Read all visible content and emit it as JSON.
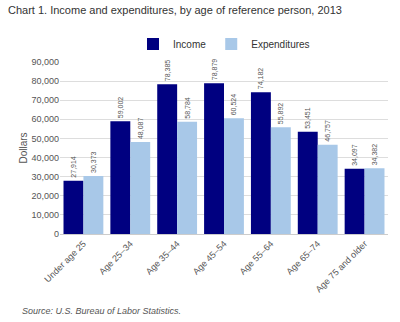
{
  "chart_data": {
    "type": "bar",
    "title": "Chart 1. Income and expenditures, by age of reference person, 2013",
    "ylabel": "Dollars",
    "source": "Source: U.S. Bureau of Labor Statistics.",
    "categories": [
      "Under age 25",
      "Age 25–34",
      "Age 35–44",
      "Age 45–54",
      "Age 55–64",
      "Age 65–74",
      "Age 75 and older"
    ],
    "series": [
      {
        "name": "Income",
        "color": "#000080",
        "values": [
          27914,
          59002,
          78385,
          78879,
          74182,
          53451,
          34097
        ],
        "value_labels": [
          "27,914",
          "59,002",
          "78,385",
          "78,879",
          "74,182",
          "53,451",
          "34,097"
        ]
      },
      {
        "name": "Expenditures",
        "color": "#A8C8E8",
        "values": [
          30373,
          48087,
          58784,
          60524,
          55892,
          46757,
          34382
        ],
        "value_labels": [
          "30,373",
          "48,087",
          "58,784",
          "60,524",
          "55,892",
          "46,757",
          "34,382"
        ]
      }
    ],
    "ylim": [
      0,
      90000
    ],
    "yticks": [
      0,
      {
        "value": 10000,
        "label": "10,000"
      },
      {
        "value": 20000,
        "label": "20,000"
      },
      {
        "value": 30000,
        "label": "30,000"
      },
      {
        "value": 40000,
        "label": "40,000"
      },
      {
        "value": 50000,
        "label": "50,000"
      },
      {
        "value": 60000,
        "label": "60,000"
      },
      {
        "value": 70000,
        "label": "70,000"
      },
      {
        "value": 80000,
        "label": "80,000"
      },
      {
        "value": 90000,
        "label": "90,000"
      }
    ],
    "grid": true,
    "legend": "top",
    "data_labels": true
  }
}
